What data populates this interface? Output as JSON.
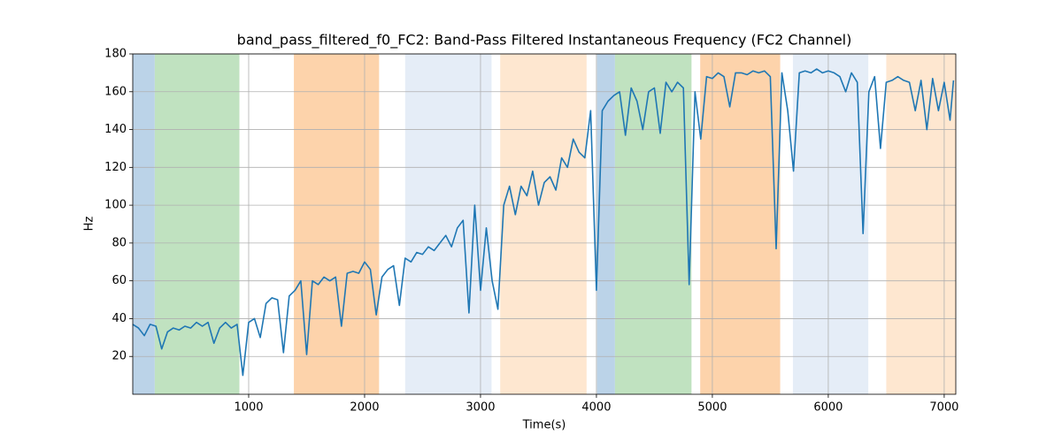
{
  "chart_data": {
    "type": "line",
    "title": "band_pass_filtered_f0_FC2: Band-Pass Filtered Instantaneous Frequency (FC2 Channel)",
    "x_label": "Time(s)",
    "y_label": "Hz",
    "xlim": [
      0,
      7100
    ],
    "ylim": [
      0,
      180
    ],
    "xticks": [
      1000,
      2000,
      3000,
      4000,
      5000,
      6000,
      7000
    ],
    "yticks": [
      20,
      40,
      60,
      80,
      100,
      120,
      140,
      160,
      180
    ],
    "grid": true,
    "spans": [
      {
        "x0": 0,
        "x1": 190,
        "color": "#bbd3e8"
      },
      {
        "x0": 190,
        "x1": 920,
        "color": "#c0e2c0"
      },
      {
        "x0": 1390,
        "x1": 2125,
        "color": "#fdd3ab"
      },
      {
        "x0": 2350,
        "x1": 3095,
        "color": "#e5edf7"
      },
      {
        "x0": 3170,
        "x1": 3915,
        "color": "#fee7d0"
      },
      {
        "x0": 4005,
        "x1": 4160,
        "color": "#bbd3e8"
      },
      {
        "x0": 4160,
        "x1": 4820,
        "color": "#c0e2c0"
      },
      {
        "x0": 4895,
        "x1": 5585,
        "color": "#fdd3ab"
      },
      {
        "x0": 5695,
        "x1": 6345,
        "color": "#e5edf7"
      },
      {
        "x0": 6500,
        "x1": 7100,
        "color": "#fee7d0"
      }
    ],
    "series": [
      {
        "name": "f0",
        "color": "#1f77b4",
        "x": [
          0,
          50,
          100,
          150,
          200,
          250,
          300,
          350,
          400,
          450,
          500,
          550,
          600,
          650,
          700,
          750,
          800,
          850,
          900,
          950,
          1000,
          1050,
          1100,
          1150,
          1200,
          1250,
          1300,
          1350,
          1400,
          1450,
          1500,
          1550,
          1600,
          1650,
          1700,
          1750,
          1800,
          1850,
          1900,
          1950,
          2000,
          2050,
          2100,
          2150,
          2200,
          2250,
          2300,
          2350,
          2400,
          2450,
          2500,
          2550,
          2600,
          2650,
          2700,
          2750,
          2800,
          2850,
          2900,
          2950,
          3000,
          3050,
          3100,
          3150,
          3200,
          3250,
          3300,
          3350,
          3400,
          3450,
          3500,
          3550,
          3600,
          3650,
          3700,
          3750,
          3800,
          3850,
          3900,
          3950,
          4000,
          4050,
          4100,
          4150,
          4200,
          4250,
          4300,
          4350,
          4400,
          4450,
          4500,
          4550,
          4600,
          4650,
          4700,
          4750,
          4800,
          4850,
          4900,
          4950,
          5000,
          5050,
          5100,
          5150,
          5200,
          5250,
          5300,
          5350,
          5400,
          5450,
          5500,
          5550,
          5600,
          5650,
          5700,
          5750,
          5800,
          5850,
          5900,
          5950,
          6000,
          6050,
          6100,
          6150,
          6200,
          6250,
          6300,
          6350,
          6400,
          6450,
          6500,
          6550,
          6600,
          6650,
          6700,
          6750,
          6800,
          6850,
          6900,
          6950,
          7000,
          7050,
          7080
        ],
        "values": [
          37,
          35,
          31,
          37,
          36,
          24,
          33,
          35,
          34,
          36,
          35,
          38,
          36,
          38,
          27,
          35,
          38,
          35,
          37,
          10,
          38,
          40,
          30,
          48,
          51,
          50,
          22,
          52,
          55,
          60,
          21,
          60,
          58,
          62,
          60,
          62,
          36,
          64,
          65,
          64,
          70,
          66,
          42,
          62,
          66,
          68,
          47,
          72,
          70,
          75,
          74,
          78,
          76,
          80,
          84,
          78,
          88,
          92,
          43,
          100,
          55,
          88,
          60,
          45,
          100,
          110,
          95,
          110,
          105,
          118,
          100,
          112,
          115,
          108,
          125,
          120,
          135,
          128,
          125,
          150,
          55,
          150,
          155,
          158,
          160,
          137,
          162,
          155,
          140,
          160,
          162,
          138,
          165,
          160,
          165,
          162,
          58,
          160,
          135,
          168,
          167,
          170,
          168,
          152,
          170,
          170,
          169,
          171,
          170,
          171,
          168,
          77,
          170,
          150,
          118,
          170,
          171,
          170,
          172,
          170,
          171,
          170,
          168,
          160,
          170,
          165,
          85,
          160,
          168,
          130,
          165,
          166,
          168,
          166,
          165,
          150,
          166,
          140,
          167,
          150,
          165,
          145,
          166
        ]
      }
    ]
  }
}
